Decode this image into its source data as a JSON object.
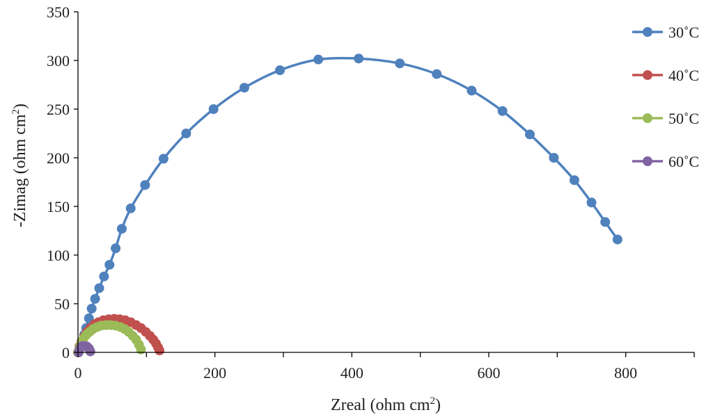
{
  "chart_data": {
    "type": "scatter",
    "title": "",
    "xlabel": "Zreal (ohm cm",
    "xlabel_sup": "2",
    "xlabel_end": ")",
    "ylabel": "-Zimag (ohm cm",
    "ylabel_sup": "2",
    "ylabel_end": ")",
    "xlim": [
      0,
      900
    ],
    "ylim": [
      0,
      350
    ],
    "xticks": [
      0,
      200,
      400,
      600,
      800
    ],
    "xtick_labels": [
      "0",
      "200",
      "400",
      "600",
      "800"
    ],
    "yticks": [
      0,
      50,
      100,
      150,
      200,
      250,
      300,
      350
    ],
    "ytick_labels": [
      "0",
      "50",
      "100",
      "150",
      "200",
      "250",
      "300",
      "350"
    ],
    "x_minor_step": 100,
    "grid": false,
    "legend_position": "top-right",
    "series": [
      {
        "name": "30˚C",
        "color": "#4f81bd",
        "x": [
          0,
          3,
          6,
          9,
          12,
          16,
          20,
          25,
          31,
          38,
          46,
          55,
          64,
          77,
          98,
          125,
          158,
          198,
          243,
          295,
          351,
          410,
          470,
          524,
          575,
          620,
          660,
          695,
          725,
          750,
          770,
          788
        ],
        "y": [
          0,
          5,
          11,
          18,
          25,
          35,
          45,
          55,
          66,
          78,
          90,
          107,
          127,
          148,
          172,
          199,
          225,
          250,
          272,
          290,
          301,
          302,
          297,
          286,
          269,
          248,
          224,
          200,
          177,
          154,
          134,
          116
        ]
      },
      {
        "name": "40˚C",
        "color": "#c0504d",
        "x": [
          0,
          2,
          5,
          9,
          13,
          18,
          24,
          30,
          37,
          45,
          53,
          61,
          69,
          77,
          85,
          92,
          99,
          105,
          110,
          114,
          117,
          119
        ],
        "y": [
          0,
          6,
          11,
          16,
          21,
          25,
          29,
          31,
          33,
          34,
          34.5,
          34,
          33,
          31,
          28,
          25,
          21,
          17,
          13,
          9,
          5,
          2
        ]
      },
      {
        "name": "50˚C",
        "color": "#9bbb59",
        "x": [
          0,
          2,
          5,
          8,
          12,
          17,
          22,
          28,
          34,
          41,
          48,
          55,
          62,
          68,
          74,
          80,
          85,
          89,
          92
        ],
        "y": [
          0,
          5,
          10,
          14,
          18,
          21,
          24,
          26,
          27.5,
          28,
          28,
          27.5,
          26,
          24,
          21,
          17,
          13,
          8,
          3
        ]
      },
      {
        "name": "60˚C",
        "color": "#8064a2",
        "x": [
          1,
          3,
          5,
          7,
          10,
          13,
          16,
          18
        ],
        "y": [
          0,
          4,
          6,
          6.5,
          6.5,
          6,
          4,
          1
        ]
      }
    ]
  }
}
